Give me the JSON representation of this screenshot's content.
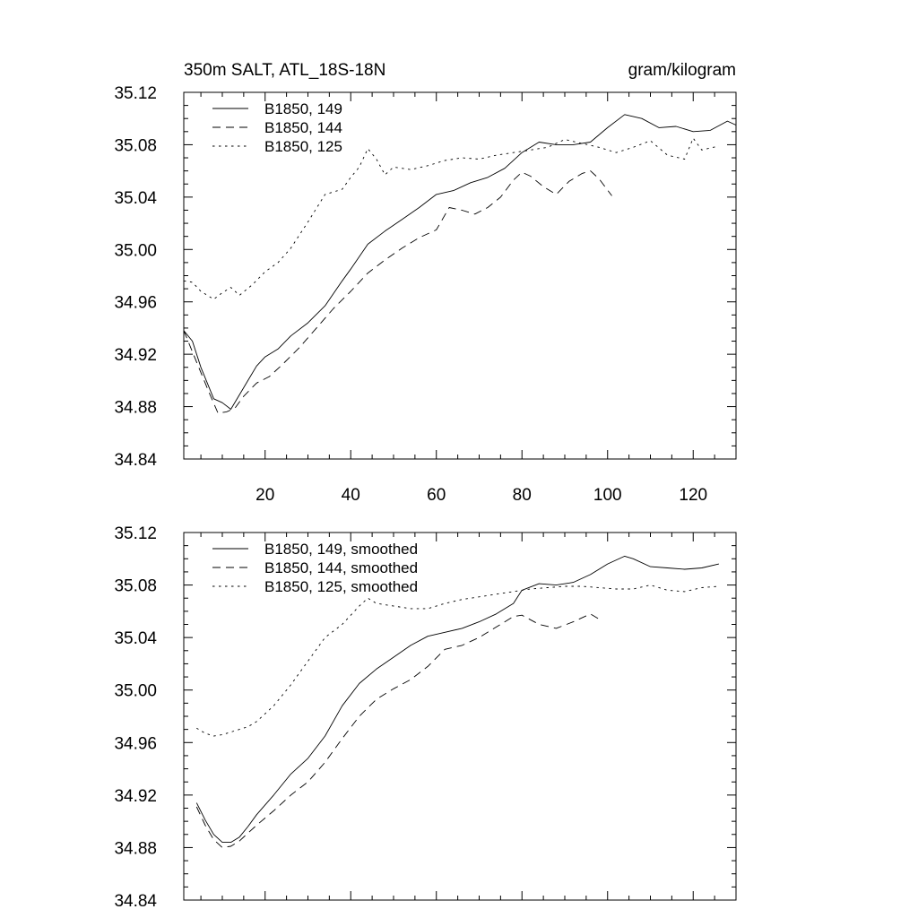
{
  "figure": {
    "title_left": "350m SALT, ATL_18S-18N",
    "title_right": "gram/kilogram"
  },
  "chart_data": [
    {
      "type": "line",
      "xlim": [
        1,
        130
      ],
      "ylim": [
        34.84,
        35.12
      ],
      "x_ticks": [
        20,
        40,
        60,
        80,
        100,
        120
      ],
      "x_tick_labels": [
        "20",
        "40",
        "60",
        "80",
        "100",
        "120"
      ],
      "y_ticks": [
        34.84,
        34.88,
        34.92,
        34.96,
        35.0,
        35.04,
        35.08,
        35.12
      ],
      "y_tick_labels": [
        "34.84",
        "34.88",
        "34.92",
        "34.96",
        "35.00",
        "35.04",
        "35.08",
        "35.12"
      ],
      "legend_position": "top-left",
      "grid": false,
      "series": [
        {
          "name": "B1850, 149",
          "style": "solid",
          "x": [
            1,
            3,
            5,
            8,
            10,
            12,
            14,
            16,
            18,
            20,
            23,
            26,
            30,
            34,
            38,
            40,
            44,
            48,
            52,
            56,
            60,
            64,
            68,
            72,
            76,
            80,
            84,
            88,
            92,
            96,
            100,
            104,
            108,
            112,
            116,
            120,
            124,
            128,
            130
          ],
          "y": [
            34.938,
            34.93,
            34.91,
            34.886,
            34.883,
            34.878,
            34.889,
            34.9,
            34.911,
            34.918,
            34.924,
            34.934,
            34.944,
            34.957,
            34.976,
            34.985,
            35.004,
            35.014,
            35.023,
            35.032,
            35.042,
            35.045,
            35.051,
            35.055,
            35.062,
            35.074,
            35.082,
            35.08,
            35.08,
            35.082,
            35.093,
            35.103,
            35.1,
            35.093,
            35.094,
            35.09,
            35.091,
            35.098,
            35.095
          ]
        },
        {
          "name": "B1850, 144",
          "style": "dashed",
          "x": [
            1,
            4,
            7,
            9,
            11,
            13,
            15,
            18,
            21,
            24,
            28,
            32,
            36,
            40,
            44,
            48,
            52,
            56,
            60,
            63,
            66,
            69,
            72,
            75,
            78,
            80,
            82,
            85,
            88,
            91,
            94,
            96,
            98,
            101
          ],
          "y": [
            34.938,
            34.914,
            34.89,
            34.875,
            34.876,
            34.879,
            34.888,
            34.898,
            34.903,
            34.912,
            34.925,
            34.94,
            34.955,
            34.968,
            34.982,
            34.992,
            35.001,
            35.009,
            35.015,
            35.032,
            35.03,
            35.027,
            35.032,
            35.04,
            35.053,
            35.059,
            35.056,
            35.048,
            35.042,
            35.052,
            35.058,
            35.06,
            35.054,
            35.041
          ]
        },
        {
          "name": "B1850, 125",
          "style": "dotted",
          "x": [
            1,
            3,
            5,
            8,
            10,
            12,
            14,
            17,
            20,
            23,
            26,
            30,
            34,
            38,
            40,
            42,
            44,
            46,
            48,
            50,
            54,
            58,
            62,
            66,
            70,
            74,
            78,
            82,
            86,
            90,
            94,
            98,
            102,
            106,
            110,
            114,
            118,
            120,
            122,
            126
          ],
          "y": [
            34.976,
            34.975,
            34.968,
            34.962,
            34.967,
            34.971,
            34.965,
            34.973,
            34.983,
            34.99,
            35.001,
            35.021,
            35.042,
            35.046,
            35.055,
            35.063,
            35.077,
            35.069,
            35.057,
            35.063,
            35.061,
            35.064,
            35.068,
            35.07,
            35.069,
            35.072,
            35.074,
            35.076,
            35.078,
            35.084,
            35.081,
            35.078,
            35.074,
            35.078,
            35.083,
            35.072,
            35.069,
            35.085,
            35.076,
            35.079
          ]
        }
      ]
    },
    {
      "type": "line",
      "xlim": [
        1,
        130
      ],
      "ylim": [
        34.84,
        35.12
      ],
      "x_ticks": [
        20,
        40,
        60,
        80,
        100,
        120
      ],
      "x_tick_labels": [],
      "y_ticks": [
        34.84,
        34.88,
        34.92,
        34.96,
        35.0,
        35.04,
        35.08,
        35.12
      ],
      "y_tick_labels": [
        "34.84",
        "34.88",
        "34.92",
        "34.96",
        "35.00",
        "35.04",
        "35.08",
        "35.12"
      ],
      "legend_position": "top-left",
      "grid": false,
      "series": [
        {
          "name": "B1850, 149, smoothed",
          "style": "solid",
          "x": [
            4,
            6,
            8,
            10,
            12,
            14,
            16,
            18,
            22,
            26,
            30,
            34,
            38,
            42,
            46,
            50,
            54,
            58,
            62,
            66,
            70,
            74,
            78,
            80,
            84,
            88,
            92,
            96,
            100,
            104,
            106,
            110,
            114,
            118,
            122,
            126
          ],
          "y": [
            34.914,
            34.901,
            34.89,
            34.884,
            34.884,
            34.888,
            34.896,
            34.905,
            34.92,
            34.936,
            34.948,
            34.965,
            34.988,
            35.005,
            35.016,
            35.025,
            35.034,
            35.041,
            35.044,
            35.047,
            35.052,
            35.058,
            35.066,
            35.076,
            35.081,
            35.08,
            35.082,
            35.088,
            35.096,
            35.102,
            35.1,
            35.094,
            35.093,
            35.092,
            35.093,
            35.096
          ]
        },
        {
          "name": "B1850, 144, smoothed",
          "style": "dashed",
          "x": [
            4,
            6,
            8,
            10,
            12,
            14,
            16,
            18,
            22,
            26,
            30,
            34,
            38,
            42,
            46,
            50,
            54,
            58,
            62,
            66,
            70,
            74,
            78,
            80,
            84,
            88,
            92,
            96,
            98
          ],
          "y": [
            34.911,
            34.897,
            34.886,
            34.88,
            34.881,
            34.885,
            34.891,
            34.897,
            34.908,
            34.92,
            34.93,
            34.945,
            34.963,
            34.98,
            34.993,
            35.001,
            35.008,
            35.018,
            35.031,
            35.034,
            35.04,
            35.048,
            35.056,
            35.057,
            35.05,
            35.047,
            35.052,
            35.058,
            35.054
          ]
        },
        {
          "name": "B1850, 125, smoothed",
          "style": "dotted",
          "x": [
            4,
            6,
            8,
            10,
            12,
            14,
            16,
            18,
            22,
            26,
            30,
            34,
            38,
            42,
            44,
            46,
            50,
            54,
            58,
            62,
            66,
            70,
            74,
            78,
            82,
            86,
            90,
            94,
            98,
            102,
            106,
            110,
            114,
            118,
            122,
            126
          ],
          "y": [
            34.971,
            34.967,
            34.965,
            34.966,
            34.968,
            34.97,
            34.972,
            34.976,
            34.988,
            35.004,
            35.022,
            35.04,
            35.05,
            35.064,
            35.07,
            35.066,
            35.064,
            35.062,
            35.062,
            35.066,
            35.069,
            35.071,
            35.073,
            35.075,
            35.077,
            35.078,
            35.079,
            35.079,
            35.078,
            35.077,
            35.077,
            35.08,
            35.076,
            35.075,
            35.078,
            35.079
          ]
        }
      ]
    }
  ]
}
